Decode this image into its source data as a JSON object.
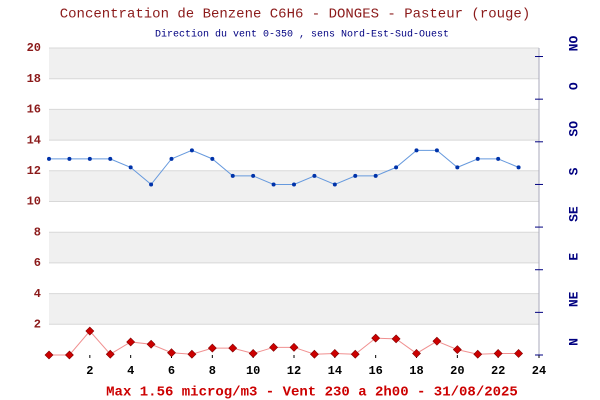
{
  "chart_data": {
    "type": "line",
    "title": "Concentration de Benzene C6H6  -   DONGES - Pasteur (rouge)",
    "subtitle": "Direction du vent 0-350 , sens Nord-Est-Sud-Ouest",
    "footer": "Max 1.56 microg/m3 - Vent 230  a 2h00 - 31/08/2025",
    "x": [
      0,
      1,
      2,
      3,
      4,
      5,
      6,
      7,
      8,
      9,
      10,
      11,
      12,
      13,
      14,
      15,
      16,
      17,
      18,
      19,
      20,
      21,
      22,
      23
    ],
    "xlim": [
      0,
      24
    ],
    "xticks": [
      2,
      4,
      6,
      8,
      10,
      12,
      14,
      16,
      18,
      20,
      22,
      24
    ],
    "ylim": [
      0,
      20
    ],
    "yticks": [
      2,
      4,
      6,
      8,
      10,
      12,
      14,
      16,
      18,
      20
    ],
    "y2lim": [
      0,
      360
    ],
    "y2ticks": [
      {
        "value": 0,
        "label": "N"
      },
      {
        "value": 50,
        "label": "NE"
      },
      {
        "value": 100,
        "label": "E"
      },
      {
        "value": 150,
        "label": "SE"
      },
      {
        "value": 200,
        "label": "S"
      },
      {
        "value": 250,
        "label": "SO"
      },
      {
        "value": 300,
        "label": "O"
      },
      {
        "value": 350,
        "label": "NO"
      }
    ],
    "grid": true,
    "series": [
      {
        "color": "#cc0000",
        "values": [
          0,
          0,
          1.56,
          0.05,
          0.85,
          0.7,
          0.15,
          0.05,
          0.45,
          0.45,
          0.1,
          0.5,
          0.5,
          0.05,
          0.1,
          0.05,
          1.1,
          1.05,
          0.1,
          0.9,
          0.35,
          0.05,
          0.1,
          0.1
        ]
      },
      {
        "color": "#3366cc",
        "axis": "y2",
        "values": [
          230,
          230,
          230,
          230,
          220,
          200,
          230,
          240,
          230,
          210,
          210,
          200,
          200,
          210,
          200,
          210,
          210,
          220,
          240,
          240,
          220,
          230,
          230,
          220
        ]
      }
    ]
  }
}
